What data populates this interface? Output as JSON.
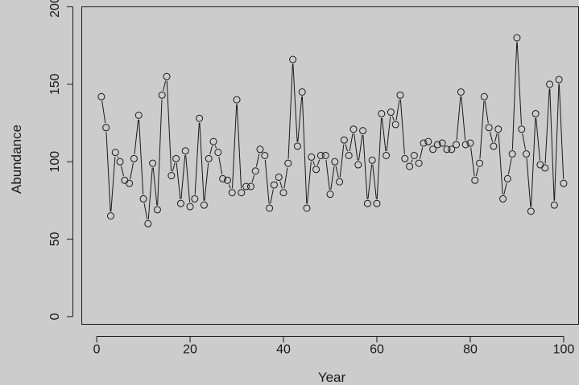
{
  "chart_data": {
    "type": "line",
    "title": "",
    "xlabel": "Year",
    "ylabel": "Abundance",
    "xlim": [
      -3.2,
      103.2
    ],
    "ylim": [
      -5,
      200
    ],
    "xticks": [
      0,
      20,
      40,
      60,
      80,
      100
    ],
    "yticks": [
      0,
      50,
      100,
      150,
      200
    ],
    "grid": false,
    "point_marker": "open-circle",
    "line_style": "solid-gap-at-points",
    "colors": {
      "background": "#cccccc",
      "ink": "#1a1a1a"
    },
    "series": [
      {
        "x": [
          1,
          2,
          3,
          4,
          5,
          6,
          7,
          8,
          9,
          10,
          11,
          12,
          13,
          14,
          15,
          16,
          17,
          18,
          19,
          20,
          21,
          22,
          23,
          24,
          25,
          26,
          27,
          28,
          29,
          30,
          31,
          32,
          33,
          34,
          35,
          36,
          37,
          38,
          39,
          40,
          41,
          42,
          43,
          44,
          45,
          46,
          47,
          48,
          49,
          50,
          51,
          52,
          53,
          54,
          55,
          56,
          57,
          58,
          59,
          60,
          61,
          62,
          63,
          64,
          65,
          66,
          67,
          68,
          69,
          70,
          71,
          72,
          73,
          74,
          75,
          76,
          77,
          78,
          79,
          80,
          81,
          82,
          83,
          84,
          85,
          86,
          87,
          88,
          89,
          90,
          91,
          92,
          93,
          94,
          95,
          96,
          97,
          98,
          99,
          100
        ],
        "y": [
          142,
          122,
          65,
          106,
          100,
          88,
          86,
          102,
          130,
          76,
          60,
          99,
          69,
          143,
          155,
          91,
          102,
          73,
          107,
          71,
          76,
          128,
          72,
          102,
          113,
          106,
          89,
          88,
          80,
          140,
          80,
          84,
          84,
          94,
          108,
          104,
          70,
          85,
          90,
          80,
          99,
          166,
          110,
          145,
          70,
          103,
          95,
          104,
          104,
          79,
          100,
          87,
          114,
          104,
          121,
          98,
          120,
          73,
          101,
          73,
          131,
          104,
          132,
          124,
          143,
          102,
          97,
          104,
          99,
          112,
          113,
          108,
          111,
          112,
          108,
          108,
          111,
          145,
          111,
          112,
          88,
          99,
          142,
          122,
          110,
          121,
          76,
          89,
          105,
          180,
          121,
          105,
          68,
          131,
          98,
          96,
          150,
          72,
          153,
          86
        ]
      }
    ]
  }
}
